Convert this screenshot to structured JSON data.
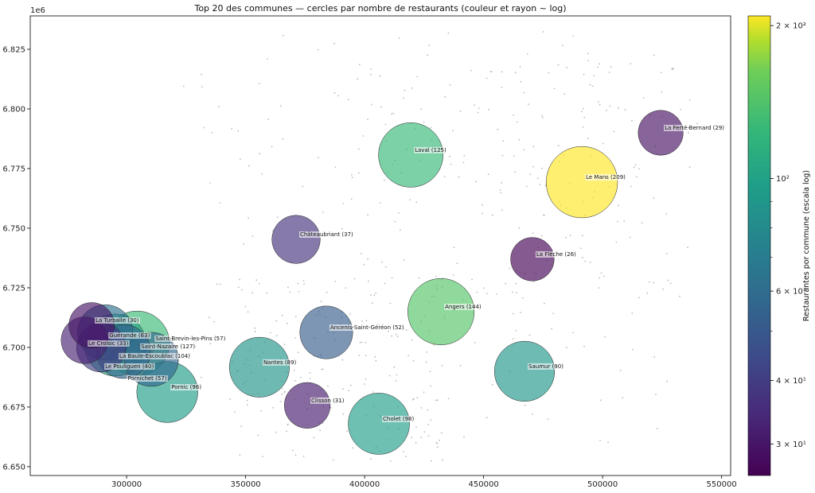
{
  "chart_data": {
    "type": "scatter",
    "title": "Top 20 des communes — cercles par nombre de restaurants (couleur et rayon ~ log)",
    "xlabel": "",
    "ylabel": "",
    "y_offset_label": "1e6",
    "xlim": [
      259500,
      553800
    ],
    "ylim": [
      6.6463,
      6.839
    ],
    "x_ticks": [
      300000,
      350000,
      400000,
      450000,
      500000,
      550000
    ],
    "x_tick_labels": [
      "300000",
      "350000",
      "400000",
      "450000",
      "500000",
      "550000"
    ],
    "y_ticks": [
      6.65,
      6.675,
      6.7,
      6.725,
      6.75,
      6.775,
      6.8,
      6.825
    ],
    "y_tick_labels": [
      "6.650",
      "6.675",
      "6.700",
      "6.725",
      "6.750",
      "6.775",
      "6.800",
      "6.825"
    ],
    "grid": false,
    "colormap": "viridis",
    "color_scale": "log",
    "color_range": [
      26,
      209
    ],
    "colorbar": {
      "label": "Restaurantes por commune (escala log)",
      "ticks": [
        30,
        40,
        60,
        100,
        200
      ],
      "tick_labels": [
        "3 × 10¹",
        "4 × 10¹",
        "6 × 10¹",
        "10²",
        "2 × 10²"
      ],
      "minor_ticks": [
        50,
        70,
        80,
        90
      ]
    },
    "points": [
      {
        "name": "Le Mans",
        "count": 209,
        "x": 491300,
        "y": 6.7693,
        "label": "Le Mans (209)"
      },
      {
        "name": "Angers",
        "count": 144,
        "x": 432100,
        "y": 6.715,
        "label": "Angers (144)"
      },
      {
        "name": "Saint-Nazaire",
        "count": 127,
        "x": 304400,
        "y": 6.7017,
        "label": "Saint-Nazaire (127)"
      },
      {
        "name": "Laval",
        "count": 125,
        "x": 419400,
        "y": 6.7807,
        "label": "Laval (125)"
      },
      {
        "name": "La Baule-Escoublac",
        "count": 104,
        "x": 295300,
        "y": 6.701,
        "label": "La Baule-Escoublac (104)"
      },
      {
        "name": "Cholet",
        "count": 98,
        "x": 406000,
        "y": 6.668,
        "label": "Cholet (98)"
      },
      {
        "name": "Pornic",
        "count": 96,
        "x": 317100,
        "y": 6.6813,
        "label": "Pornic (96)"
      },
      {
        "name": "Saumur",
        "count": 90,
        "x": 467200,
        "y": 6.69,
        "label": "Saumur (90)"
      },
      {
        "name": "Nantes",
        "count": 89,
        "x": 355800,
        "y": 6.6917,
        "label": "Nantes (89)"
      },
      {
        "name": "Guérande",
        "count": 63,
        "x": 291000,
        "y": 6.7063,
        "label": "Guérande (63)"
      },
      {
        "name": "Saint-Brevin-les-Pins",
        "count": 57,
        "x": 310400,
        "y": 6.695,
        "label": "Saint-Brevin-les-Pins (57)"
      },
      {
        "name": "Pornichet",
        "count": 57,
        "x": 298700,
        "y": 6.6983,
        "label": "Pornichet (57)"
      },
      {
        "name": "Ancenis-Saint-Géréon",
        "count": 52,
        "x": 383900,
        "y": 6.7063,
        "label": "Ancenis-Saint-Géréon (52)"
      },
      {
        "name": "Le Pouliguen",
        "count": 40,
        "x": 289300,
        "y": 6.7,
        "label": "Le Pouliguen (40)"
      },
      {
        "name": "Châteaubriant",
        "count": 37,
        "x": 371200,
        "y": 6.7453,
        "label": "Châteaubriant (37)"
      },
      {
        "name": "Le Croisic",
        "count": 33,
        "x": 282300,
        "y": 6.703,
        "label": "Le Croisic (33)"
      },
      {
        "name": "Clisson",
        "count": 31,
        "x": 375900,
        "y": 6.6757,
        "label": "Clisson (31)"
      },
      {
        "name": "La Turballe",
        "count": 30,
        "x": 285300,
        "y": 6.7093,
        "label": "La Turballe (30)"
      },
      {
        "name": "La Ferté-Bernard",
        "count": 29,
        "x": 524400,
        "y": 6.79,
        "label": "La Ferté-Bernard (29)"
      },
      {
        "name": "La Flèche",
        "count": 26,
        "x": 470500,
        "y": 6.737,
        "label": "La Flèche (26)"
      }
    ]
  }
}
